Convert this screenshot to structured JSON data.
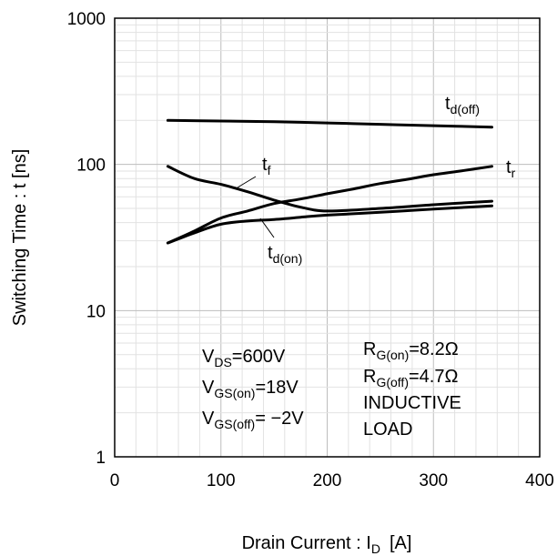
{
  "chart_data": {
    "type": "line",
    "xlabel_main": "Drain Current : I",
    "xlabel_sub": "D",
    "xlabel_unit": "[A]",
    "ylabel": "Switching Time : t [ns]",
    "x_range": [
      0,
      400
    ],
    "y_range": [
      1,
      1000
    ],
    "y_scale": "log",
    "grid": true,
    "x_ticks": [
      "0",
      "100",
      "200",
      "300",
      "400"
    ],
    "y_ticks": [
      "1",
      "10",
      "100",
      "1000"
    ],
    "series": [
      {
        "name": "td(off)",
        "label_main": "t",
        "label_sub": "d(off)",
        "x": [
          50,
          100,
          150,
          200,
          250,
          300,
          355
        ],
        "y": [
          200,
          198,
          196,
          192,
          188,
          184,
          180
        ]
      },
      {
        "name": "tr",
        "label_main": "t",
        "label_sub": "r",
        "x": [
          50,
          75,
          100,
          125,
          150,
          175,
          200,
          225,
          250,
          275,
          300,
          325,
          355
        ],
        "y": [
          29,
          35,
          43,
          48,
          54,
          58,
          63,
          68,
          74,
          79,
          85,
          90,
          97
        ]
      },
      {
        "name": "tf",
        "label_main": "t",
        "label_sub": "f",
        "x": [
          50,
          75,
          100,
          125,
          150,
          175,
          200,
          250,
          300,
          355
        ],
        "y": [
          97,
          80,
          73,
          65,
          57,
          51,
          48,
          50,
          53,
          56
        ]
      },
      {
        "name": "td(on)",
        "label_main": "t",
        "label_sub": "d(on)",
        "x": [
          50,
          75,
          100,
          125,
          150,
          175,
          200,
          250,
          300,
          355
        ],
        "y": [
          29,
          34,
          39,
          41,
          42,
          43.5,
          45,
          47,
          49.5,
          52
        ]
      }
    ],
    "conditions_left": [
      {
        "main": "V",
        "sub": "DS",
        "value": "=600V"
      },
      {
        "main": "V",
        "sub": "GS(on)",
        "value": "=18V"
      },
      {
        "main": "V",
        "sub": "GS(off)",
        "value": "= −2V"
      }
    ],
    "conditions_right": [
      {
        "main": "R",
        "sub": "G(on)",
        "value": "=8.2Ω"
      },
      {
        "main": "R",
        "sub": "G(off)",
        "value": "=4.7Ω"
      },
      {
        "main": "INDUCTIVE",
        "sub": "",
        "value": ""
      },
      {
        "main": "LOAD",
        "sub": "",
        "value": ""
      }
    ]
  }
}
